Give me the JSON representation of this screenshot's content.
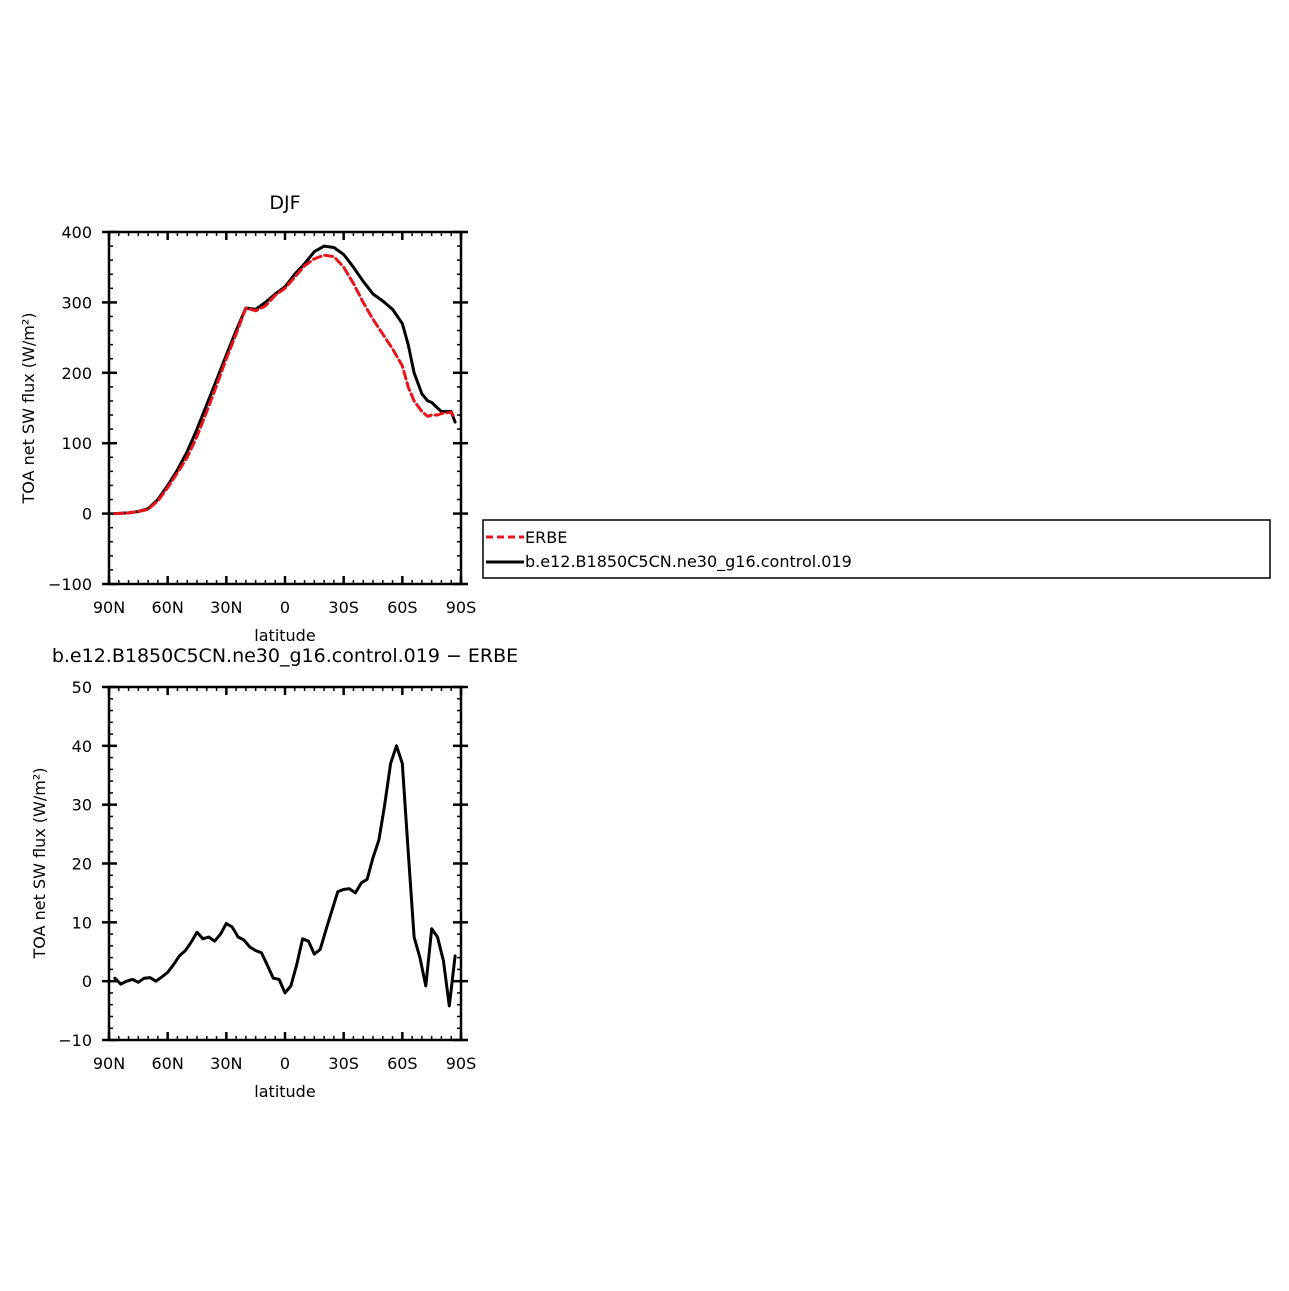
{
  "chart_data": [
    {
      "type": "line",
      "title": "DJF",
      "xlabel": "latitude",
      "ylabel": "TOA net SW flux (W/m²)",
      "xlim": [
        -90,
        90
      ],
      "ylim": [
        -100,
        400
      ],
      "x_ticks": [
        -90,
        -60,
        -30,
        0,
        30,
        60,
        90
      ],
      "x_tick_labels": [
        "90N",
        "60N",
        "30N",
        "0",
        "30S",
        "60S",
        "90S"
      ],
      "y_ticks": [
        -100,
        0,
        100,
        200,
        300,
        400
      ],
      "y_tick_labels": [
        "−100",
        "0",
        "100",
        "200",
        "300",
        "400"
      ],
      "legend_placement": "right",
      "series": [
        {
          "name": "ERBE",
          "color": "#e8141c",
          "dash": "dashed",
          "x": [
            -87,
            -80,
            -75,
            -70,
            -65,
            -60,
            -55,
            -50,
            -45,
            -40,
            -35,
            -30,
            -25,
            -20,
            -15,
            -10,
            -5,
            0,
            5,
            10,
            15,
            20,
            25,
            30,
            35,
            40,
            45,
            50,
            55,
            60,
            63,
            66,
            70,
            73,
            75,
            78,
            80,
            85,
            87
          ],
          "y": [
            0,
            1,
            3,
            6,
            18,
            37,
            58,
            80,
            110,
            145,
            182,
            220,
            255,
            292,
            288,
            295,
            310,
            320,
            336,
            352,
            362,
            367,
            365,
            350,
            327,
            300,
            276,
            255,
            234,
            210,
            180,
            160,
            145,
            138,
            140,
            140,
            142,
            144,
            135
          ]
        },
        {
          "name": "b.e12.B1850C5CN.ne30_g16.control.019",
          "color": "#000000",
          "dash": "solid",
          "x": [
            -87,
            -80,
            -75,
            -70,
            -65,
            -60,
            -55,
            -50,
            -45,
            -40,
            -35,
            -30,
            -25,
            -20,
            -15,
            -10,
            -5,
            0,
            5,
            10,
            15,
            20,
            25,
            30,
            35,
            40,
            45,
            50,
            55,
            60,
            63,
            66,
            70,
            73,
            75,
            78,
            80,
            85,
            87
          ],
          "y": [
            0,
            1,
            3,
            7,
            20,
            40,
            62,
            88,
            120,
            155,
            190,
            225,
            260,
            292,
            290,
            300,
            312,
            322,
            340,
            355,
            372,
            380,
            378,
            368,
            350,
            330,
            312,
            302,
            290,
            270,
            240,
            200,
            170,
            160,
            158,
            150,
            145,
            145,
            130
          ]
        }
      ]
    },
    {
      "type": "line",
      "title": "b.e12.B1850C5CN.ne30_g16.control.019 − ERBE",
      "xlabel": "latitude",
      "ylabel": "TOA net SW flux (W/m²)",
      "xlim": [
        -90,
        90
      ],
      "ylim": [
        -10,
        50
      ],
      "x_ticks": [
        -90,
        -60,
        -30,
        0,
        30,
        60,
        90
      ],
      "x_tick_labels": [
        "90N",
        "60N",
        "30N",
        "0",
        "30S",
        "60S",
        "90S"
      ],
      "y_ticks": [
        -10,
        0,
        10,
        20,
        30,
        40,
        50
      ],
      "y_tick_labels": [
        "−10",
        "0",
        "10",
        "20",
        "30",
        "40",
        "50"
      ],
      "series": [
        {
          "color": "#000000",
          "dash": "solid",
          "x": [
            -87,
            -84,
            -81,
            -78,
            -75,
            -72,
            -69,
            -66,
            -63,
            -60,
            -57,
            -54,
            -51,
            -48,
            -45,
            -42,
            -39,
            -36,
            -33,
            -30,
            -27,
            -24,
            -21,
            -18,
            -15,
            -12,
            -9,
            -6,
            -3,
            0,
            3,
            6,
            9,
            12,
            15,
            18,
            21,
            24,
            27,
            30,
            33,
            36,
            39,
            42,
            45,
            48,
            51,
            54,
            57,
            60,
            63,
            66,
            69,
            72,
            75,
            78,
            81,
            84,
            87
          ],
          "y": [
            0.5,
            -0.5,
            0,
            0.3,
            -0.2,
            0.5,
            0.6,
            0,
            0.7,
            1.5,
            2.8,
            4.3,
            5.2,
            6.6,
            8.3,
            7.2,
            7.5,
            6.8,
            8.0,
            9.8,
            9.2,
            7.5,
            7.0,
            5.8,
            5.2,
            4.8,
            2.7,
            0.5,
            0.3,
            -2,
            -0.8,
            2.8,
            7.2,
            6.8,
            4.6,
            5.4,
            8.8,
            12.0,
            15.2,
            15.6,
            15.7,
            15.0,
            16.7,
            17.3,
            21.0,
            24.0,
            30.0,
            37.0,
            40.0,
            37.0,
            22.0,
            7.5,
            4.0,
            -0.8,
            8.9,
            7.5,
            3.5,
            -4.2,
            4.3
          ]
        }
      ]
    }
  ]
}
